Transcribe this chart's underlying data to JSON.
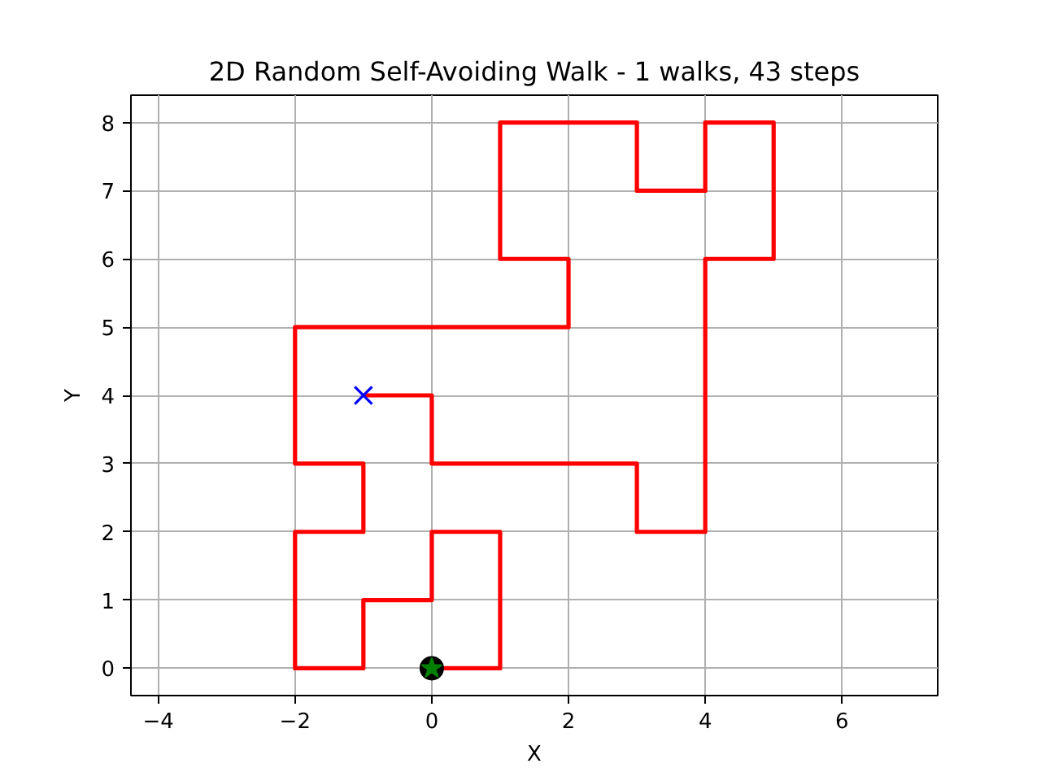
{
  "chart_data": {
    "type": "line",
    "title": "2D Random Self-Avoiding Walk - 1 walks, 43 steps",
    "xlabel": "X",
    "ylabel": "Y",
    "xlim": [
      -4.4,
      7.4
    ],
    "ylim": [
      -0.4,
      8.4
    ],
    "xticks": [
      {
        "value": -4,
        "label": "−4"
      },
      {
        "value": -2,
        "label": "−2"
      },
      0,
      2,
      4,
      6
    ],
    "yticks": [
      0,
      1,
      2,
      3,
      4,
      5,
      6,
      7,
      8
    ],
    "grid": true,
    "series": [
      {
        "color": "#ff0000",
        "line_style": "solid",
        "x": [
          0,
          1,
          1,
          1,
          0,
          0,
          -1,
          -1,
          -2,
          -2,
          -2,
          -1,
          -1,
          -2,
          -2,
          -2,
          -1,
          0,
          1,
          2,
          2,
          1,
          1,
          1,
          2,
          3,
          3,
          4,
          4,
          5,
          5,
          5,
          4,
          4,
          4,
          4,
          4,
          3,
          3,
          2,
          1,
          0,
          0,
          -1
        ],
        "values": [
          0,
          0,
          1,
          2,
          2,
          1,
          1,
          0,
          0,
          1,
          2,
          2,
          3,
          3,
          4,
          5,
          5,
          5,
          5,
          5,
          6,
          6,
          7,
          8,
          8,
          8,
          7,
          7,
          8,
          8,
          7,
          6,
          6,
          5,
          4,
          3,
          2,
          2,
          3,
          3,
          3,
          3,
          4,
          4
        ]
      },
      {
        "type": "scatter",
        "color": "#000000",
        "marker": "circle",
        "x": [
          0
        ],
        "values": [
          0
        ]
      },
      {
        "type": "scatter",
        "color": "#008000",
        "marker": "star",
        "x": [
          0
        ],
        "values": [
          0
        ]
      },
      {
        "type": "scatter",
        "color": "#0000ff",
        "marker": "cross",
        "x": [
          -1
        ],
        "values": [
          4
        ]
      }
    ]
  }
}
